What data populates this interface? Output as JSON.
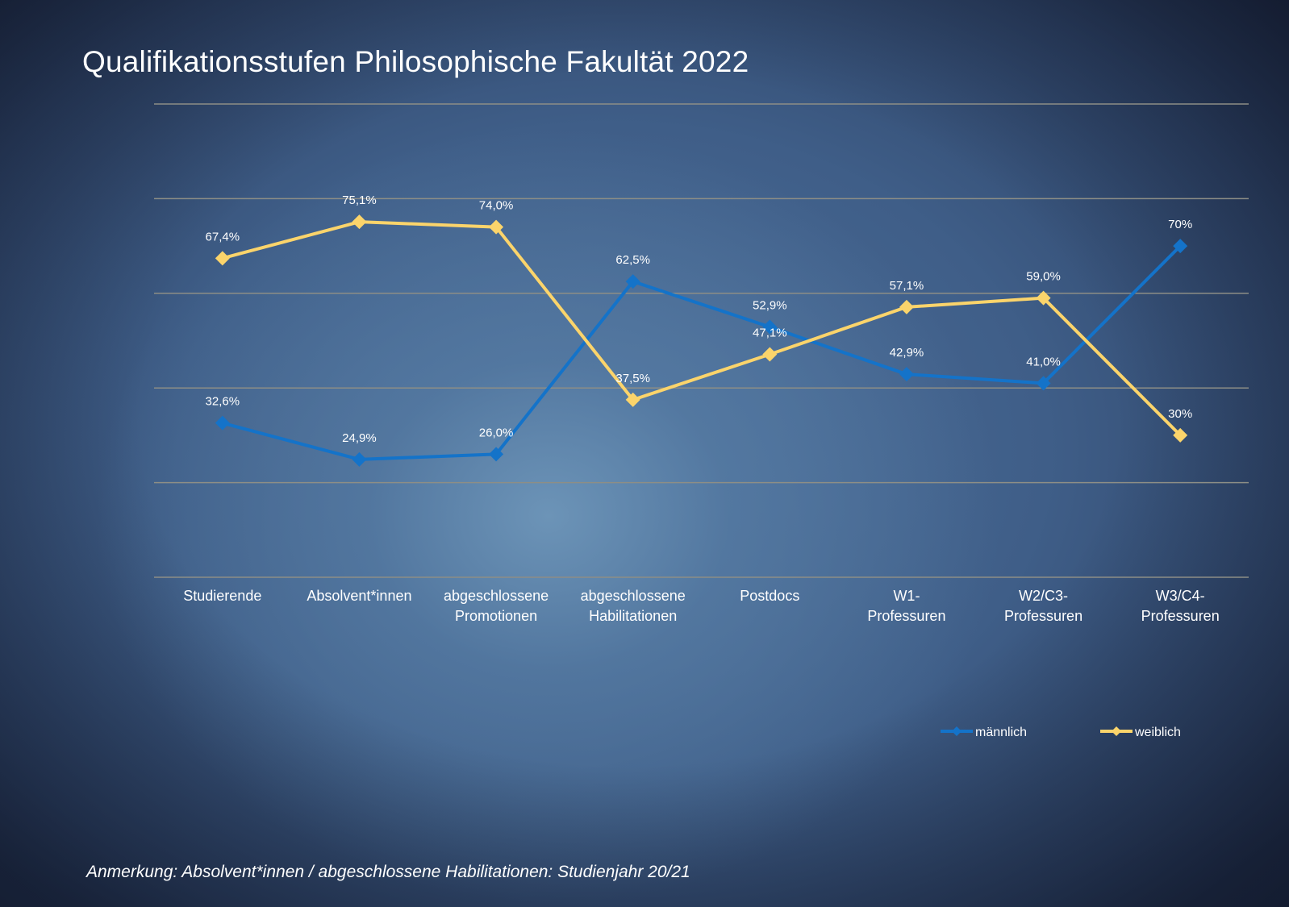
{
  "title": "Qualifikationsstufen Philosophische Fakultät 2022",
  "note": "Anmerkung: Absolvent*innen / abgeschlossene Habilitationen: Studienjahr 20/21",
  "chart_data": {
    "type": "line",
    "categories": [
      [
        "Studierende"
      ],
      [
        "Absolvent*innen"
      ],
      [
        "abgeschlossene",
        "Promotionen"
      ],
      [
        "abgeschlossene",
        "Habilitationen"
      ],
      [
        "Postdocs"
      ],
      [
        "W1-",
        "Professuren"
      ],
      [
        "W2/C3-",
        "Professuren"
      ],
      [
        "W3/C4-",
        "Professuren"
      ]
    ],
    "series": [
      {
        "name": "männlich",
        "color": "#1473c9",
        "values": [
          32.6,
          24.9,
          26.0,
          62.5,
          52.9,
          42.9,
          41.0,
          70
        ],
        "labels": [
          "32,6%",
          "24,9%",
          "26,0%",
          "62,5%",
          "52,9%",
          "42,9%",
          "41,0%",
          "70%"
        ]
      },
      {
        "name": "weiblich",
        "color": "#fbd46b",
        "values": [
          67.4,
          75.1,
          74.0,
          37.5,
          47.1,
          57.1,
          59.0,
          30
        ],
        "labels": [
          "67,4%",
          "75,1%",
          "74,0%",
          "37,5%",
          "47,1%",
          "57,1%",
          "59,0%",
          "30%"
        ]
      }
    ],
    "ylim": [
      0,
      100
    ],
    "grid": true,
    "legend": "bottom-right"
  }
}
